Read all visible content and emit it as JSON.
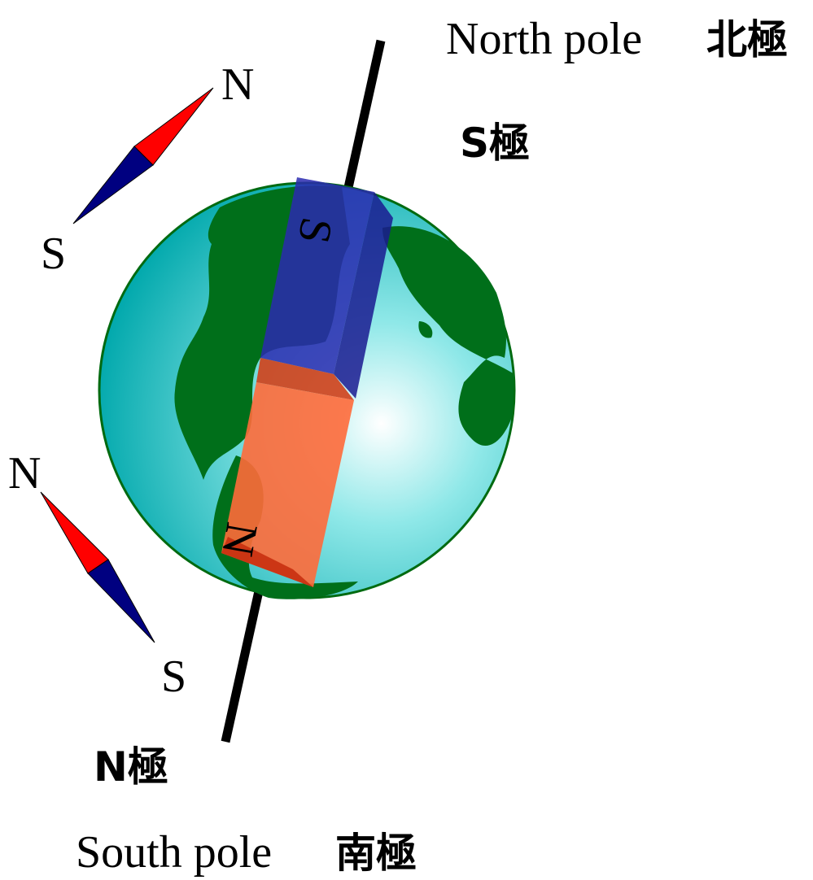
{
  "north_pole": {
    "en": "North pole",
    "ja": "北極"
  },
  "south_pole": {
    "en": "South pole",
    "ja": "南極"
  },
  "magnet": {
    "top_pole_label": "S極",
    "bottom_pole_label": "N極",
    "top": "S",
    "bottom": "N"
  },
  "compasses": [
    {
      "north": "N",
      "south": "S"
    },
    {
      "north": "N",
      "south": "S"
    }
  ]
}
